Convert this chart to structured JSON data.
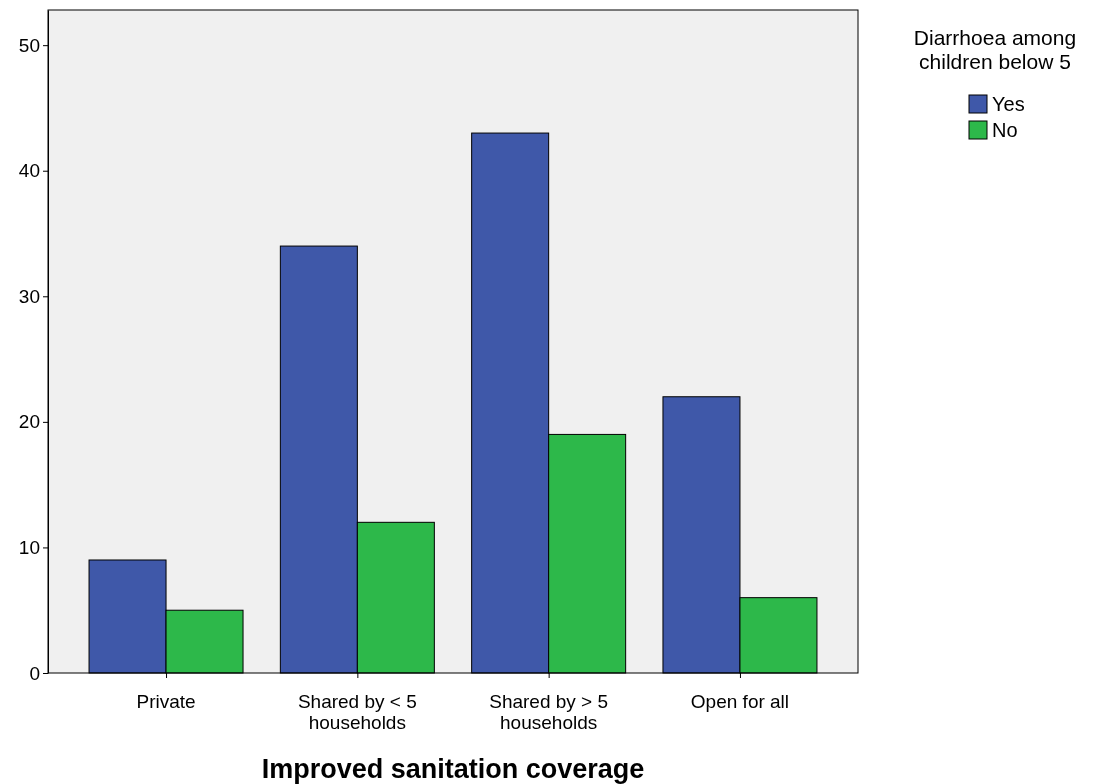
{
  "chart_data": {
    "type": "bar",
    "xlabel": "Improved sanitation coverage",
    "legend_title": "Diarrhoea among children below 5",
    "categories": [
      "Private",
      "Shared by < 5 households",
      "Shared by > 5 households",
      "Open for all"
    ],
    "series": [
      {
        "name": "Yes",
        "color": "#3f58a9",
        "values": [
          9,
          34,
          43,
          22
        ]
      },
      {
        "name": "No",
        "color": "#2db84a",
        "values": [
          5,
          12,
          19,
          6
        ]
      }
    ],
    "ylim": [
      0,
      52.8
    ],
    "yticks": [
      0,
      10,
      20,
      30,
      40,
      50
    ],
    "grid": false,
    "legend": "top right"
  }
}
